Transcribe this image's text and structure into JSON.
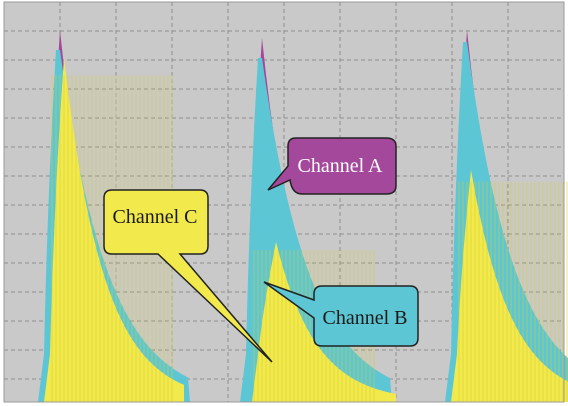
{
  "chart_data": {
    "type": "area",
    "title": "",
    "xlabel": "",
    "ylabel": "",
    "grid": true,
    "colors": {
      "background": "#c9c9c9",
      "grid": "#8e8e8e",
      "channel_a": "#a4489b",
      "channel_b": "#5cc6d4",
      "channel_c": "#f2ea4c"
    },
    "pulses": [
      {
        "peak_a": 0.93,
        "peak_b": 0.88,
        "peak_c": 0.86
      },
      {
        "peak_a": 0.91,
        "peak_b": 0.86,
        "peak_c": 0.4
      },
      {
        "peak_a": 0.93,
        "peak_b": 0.9,
        "peak_c": 0.58
      }
    ],
    "series": [
      {
        "name": "Channel A",
        "color_key": "channel_a"
      },
      {
        "name": "Channel B",
        "color_key": "channel_b"
      },
      {
        "name": "Channel C",
        "color_key": "channel_c"
      }
    ]
  },
  "callouts": {
    "a": "Channel A",
    "b": "Channel B",
    "c": "Channel C"
  }
}
